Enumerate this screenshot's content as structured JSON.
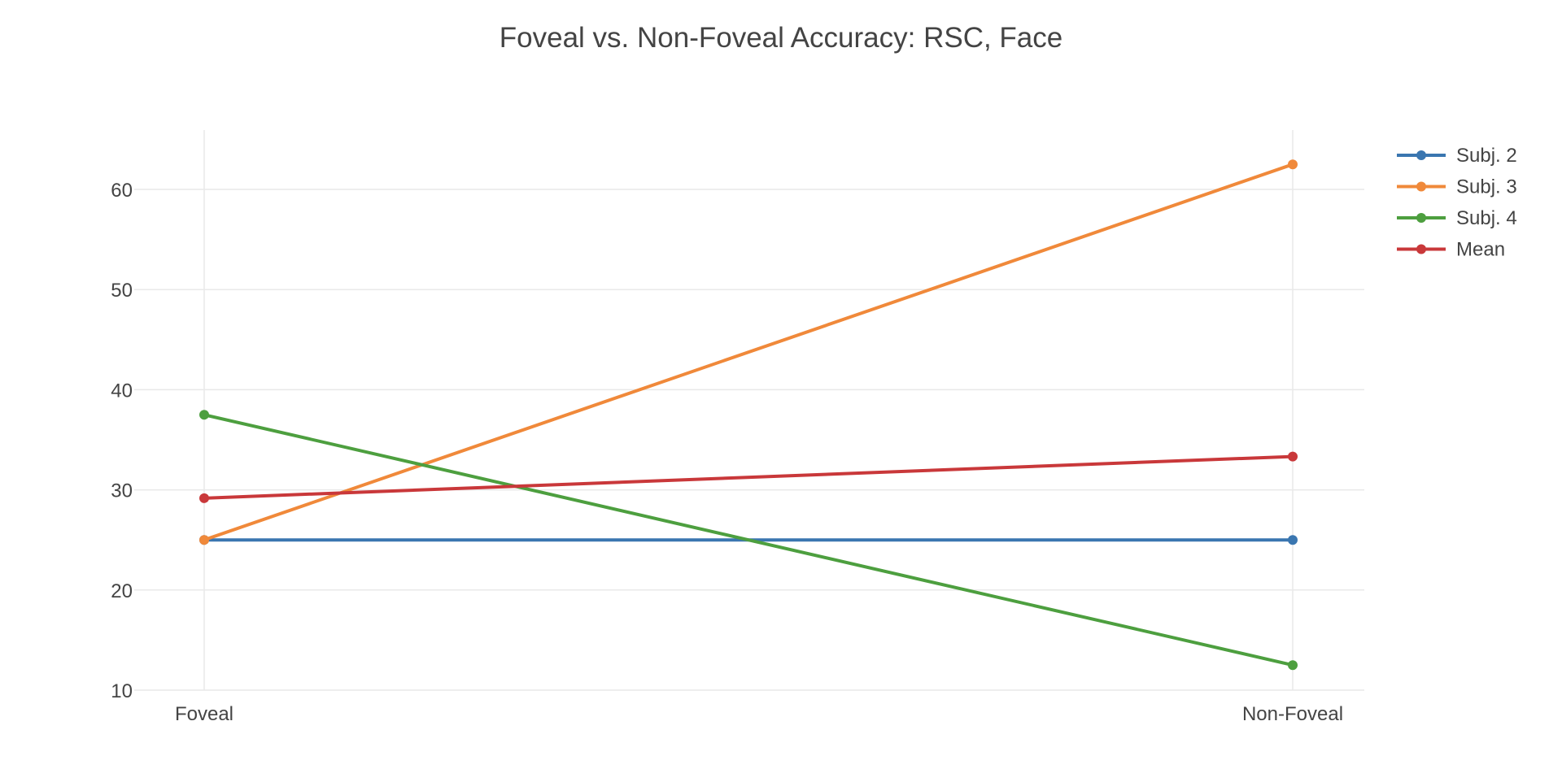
{
  "chart_data": {
    "type": "line",
    "title": "Foveal vs. Non-Foveal Accuracy: RSC, Face",
    "xlabel": "",
    "ylabel": "",
    "categories": [
      "Foveal",
      "Non-Foveal"
    ],
    "ylim": [
      10,
      65
    ],
    "yticks": [
      10,
      20,
      30,
      40,
      50,
      60
    ],
    "grid": true,
    "legend_position": "top-right",
    "series": [
      {
        "name": "Subj. 2",
        "color": "#3a76b0",
        "values": [
          25,
          25
        ]
      },
      {
        "name": "Subj. 3",
        "color": "#f0893a",
        "values": [
          25,
          62.5
        ]
      },
      {
        "name": "Subj. 4",
        "color": "#4d9f3f",
        "values": [
          37.5,
          12.5
        ]
      },
      {
        "name": "Mean",
        "color": "#c9383a",
        "values": [
          29.17,
          33.33
        ]
      }
    ]
  }
}
